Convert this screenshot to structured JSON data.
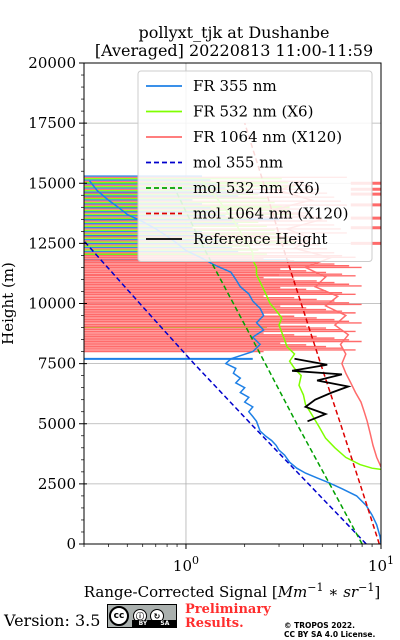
{
  "title": {
    "line1": "pollyxt_tjk at Dushanbe",
    "line2": "[Averaged] 20220813 11:00-11:59"
  },
  "chart_data": {
    "type": "line",
    "xlabel_text": "Range-Corrected Signal [",
    "xlabel_unit": "Mm",
    "xlabel_unit_exp": "−1",
    "xlabel_mul": " ∗ sr",
    "xlabel_sr_exp": "−1",
    "xlabel_close": "]",
    "ylabel": "Height (m)",
    "xscale": "log",
    "xlim": [
      0.3,
      10
    ],
    "ylim": [
      0,
      20000
    ],
    "x_ticks": [
      {
        "value": 1,
        "base": "10",
        "exp": "0"
      },
      {
        "value": 10,
        "base": "10",
        "exp": "1"
      }
    ],
    "y_ticks": [
      0,
      2500,
      5000,
      7500,
      10000,
      12500,
      15000,
      17500,
      20000
    ],
    "y_tick_labels": [
      "0",
      "2500",
      "5000",
      "7500",
      "10000",
      "12500",
      "15000",
      "17500",
      "20000"
    ],
    "grid": true,
    "legend_position": "top-right",
    "series": [
      {
        "name": "FR 355 nm",
        "color": "#1e80e6",
        "style": "solid",
        "points": [
          [
            10,
            0
          ],
          [
            9.9,
            300
          ],
          [
            9.5,
            800
          ],
          [
            9.0,
            1200
          ],
          [
            8.4,
            1600
          ],
          [
            7.5,
            2000
          ],
          [
            6.3,
            2300
          ],
          [
            5.4,
            2550
          ],
          [
            4.7,
            2750
          ],
          [
            4.1,
            2950
          ],
          [
            3.7,
            3150
          ],
          [
            3.4,
            3400
          ],
          [
            3.2,
            3700
          ],
          [
            3.0,
            3900
          ],
          [
            2.9,
            4100
          ],
          [
            2.75,
            4300
          ],
          [
            2.55,
            4500
          ],
          [
            2.4,
            4700
          ],
          [
            2.35,
            4900
          ],
          [
            2.3,
            5100
          ],
          [
            2.2,
            5300
          ],
          [
            2.1,
            5500
          ],
          [
            2.2,
            5700
          ],
          [
            2.0,
            5900
          ],
          [
            2.1,
            6100
          ],
          [
            1.9,
            6300
          ],
          [
            2.0,
            6500
          ],
          [
            1.8,
            6700
          ],
          [
            1.9,
            6900
          ],
          [
            1.75,
            7100
          ],
          [
            1.8,
            7300
          ],
          [
            1.6,
            7500
          ],
          [
            1.7,
            7700
          ],
          [
            2.2,
            8000
          ],
          [
            2.4,
            8300
          ],
          [
            2.2,
            8600
          ],
          [
            2.5,
            8900
          ],
          [
            2.3,
            9200
          ],
          [
            2.5,
            9500
          ],
          [
            2.4,
            9800
          ],
          [
            2.2,
            10100
          ],
          [
            2.1,
            10400
          ],
          [
            1.9,
            10700
          ],
          [
            1.8,
            11000
          ],
          [
            1.7,
            11300
          ],
          [
            1.4,
            11600
          ],
          [
            1.2,
            11900
          ],
          [
            1.0,
            12200
          ],
          [
            0.9,
            12500
          ],
          [
            0.8,
            12800
          ],
          [
            0.7,
            13100
          ],
          [
            0.6,
            13400
          ],
          [
            0.5,
            13700
          ],
          [
            0.45,
            14000
          ],
          [
            0.4,
            14300
          ],
          [
            0.35,
            14700
          ],
          [
            0.32,
            15100
          ]
        ]
      },
      {
        "name": "FR 532 nm (X6)",
        "color": "#7fff00",
        "style": "solid",
        "points": [
          [
            10,
            3100
          ],
          [
            9.0,
            3150
          ],
          [
            7.8,
            3300
          ],
          [
            6.6,
            3600
          ],
          [
            5.8,
            4000
          ],
          [
            5.2,
            4400
          ],
          [
            4.8,
            4900
          ],
          [
            4.4,
            5400
          ],
          [
            4.1,
            5800
          ],
          [
            4.0,
            6200
          ],
          [
            3.8,
            6600
          ],
          [
            3.9,
            7000
          ],
          [
            3.6,
            7300
          ],
          [
            3.4,
            7600
          ],
          [
            3.6,
            7900
          ],
          [
            3.3,
            8200
          ],
          [
            3.2,
            8500
          ],
          [
            3.1,
            8800
          ],
          [
            3.0,
            9100
          ],
          [
            3.1,
            9400
          ],
          [
            2.9,
            9700
          ],
          [
            2.7,
            10000
          ],
          [
            2.6,
            10300
          ],
          [
            2.5,
            10600
          ],
          [
            2.4,
            10900
          ],
          [
            2.3,
            11200
          ],
          [
            2.3,
            11500
          ],
          [
            2.2,
            11800
          ],
          [
            2.2,
            12100
          ],
          [
            2.1,
            12400
          ],
          [
            1.95,
            12700
          ],
          [
            1.9,
            13000
          ],
          [
            1.8,
            13300
          ],
          [
            1.7,
            13600
          ],
          [
            1.6,
            13900
          ],
          [
            1.5,
            14200
          ],
          [
            1.4,
            14500
          ],
          [
            1.3,
            14800
          ],
          [
            1.2,
            15100
          ]
        ]
      },
      {
        "name": "FR 1064 nm (X120)",
        "color": "#ff6b6b",
        "style": "solid",
        "points": [
          [
            10,
            3200
          ],
          [
            9.5,
            3600
          ],
          [
            9.1,
            4100
          ],
          [
            8.8,
            4600
          ],
          [
            8.5,
            5100
          ],
          [
            8.2,
            5500
          ],
          [
            7.9,
            5900
          ],
          [
            7.4,
            6300
          ],
          [
            7.0,
            6700
          ],
          [
            6.6,
            7100
          ],
          [
            6.3,
            7500
          ],
          [
            6.6,
            7900
          ],
          [
            6.2,
            8300
          ],
          [
            6.8,
            8700
          ],
          [
            5.8,
            9100
          ],
          [
            6.6,
            9500
          ],
          [
            5.2,
            9900
          ],
          [
            6.0,
            10300
          ],
          [
            4.6,
            10700
          ],
          [
            5.2,
            11100
          ],
          [
            4.1,
            11500
          ],
          [
            5.5,
            11900
          ],
          [
            3.6,
            12300
          ],
          [
            4.4,
            12700
          ],
          [
            3.3,
            13100
          ],
          [
            5.0,
            13500
          ],
          [
            2.8,
            13900
          ],
          [
            4.4,
            14300
          ],
          [
            3.0,
            14700
          ],
          [
            4.0,
            15100
          ]
        ]
      },
      {
        "name": "mol 355 nm",
        "color": "#0000cc",
        "style": "dashed",
        "points": [
          [
            8.4,
            0
          ],
          [
            4.25,
            2500
          ],
          [
            2.15,
            5000
          ],
          [
            1.1,
            7500
          ],
          [
            0.58,
            10000
          ],
          [
            0.3,
            12600
          ]
        ]
      },
      {
        "name": "mol 532 nm (X6)",
        "color": "#00a000",
        "style": "dashed",
        "points": [
          [
            8.0,
            0
          ],
          [
            5.45,
            2500
          ],
          [
            3.7,
            5000
          ],
          [
            2.55,
            7500
          ],
          [
            1.75,
            10000
          ],
          [
            1.2,
            12500
          ],
          [
            0.85,
            15000
          ]
        ]
      },
      {
        "name": "mol 1064 nm (X120)",
        "color": "#dd0000",
        "style": "dashed",
        "points": [
          [
            9.8,
            0
          ],
          [
            7.8,
            2500
          ],
          [
            6.2,
            5000
          ],
          [
            4.9,
            7500
          ],
          [
            3.9,
            10000
          ],
          [
            3.1,
            12500
          ],
          [
            2.5,
            15000
          ],
          [
            2.0,
            17500
          ]
        ]
      },
      {
        "name": "Reference Height",
        "color": "#000000",
        "style": "solid",
        "points": [
          [
            4.2,
            5100
          ],
          [
            5.2,
            5400
          ],
          [
            4.1,
            5700
          ],
          [
            4.6,
            6000
          ],
          [
            5.6,
            6300
          ],
          [
            6.8,
            6550
          ],
          [
            4.7,
            6800
          ],
          [
            6.3,
            7050
          ],
          [
            3.5,
            7200
          ],
          [
            5.3,
            7450
          ],
          [
            3.6,
            7700
          ]
        ]
      }
    ],
    "right_edge_bars_heights": [
      12500,
      13150,
      13550,
      14100,
      14550,
      14750,
      15000
    ],
    "left_bar_heights": [
      7700,
      9000,
      11200,
      11800,
      12050,
      12800,
      13500,
      14000,
      14400,
      14600,
      15000
    ]
  },
  "footer": {
    "version": "Version: 3.5",
    "badge_cc": "cc",
    "badge_by": "BY",
    "badge_sa": "SA",
    "preliminary_line1": "Preliminary",
    "preliminary_line2": "Results.",
    "copyright_line1": "© TROPOS 2022.",
    "copyright_line2": "CC BY SA 4.0 License."
  }
}
